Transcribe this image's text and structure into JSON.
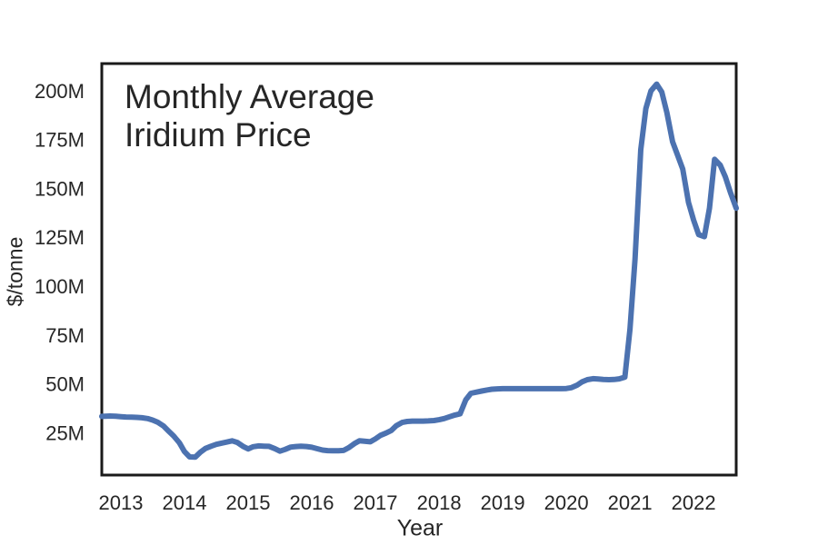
{
  "colors": {
    "line": "#4c72b0",
    "frame": "#1a1a1a",
    "text": "#262626",
    "background": "#ffffff"
  },
  "chart_data": {
    "type": "line",
    "title": "Monthly Average Iridium Price",
    "title_line1": "Monthly Average",
    "title_line2": "Iridium Price",
    "xlabel": "Year",
    "ylabel": "$/tonne",
    "grid": false,
    "legend": "none",
    "xlim": [
      2012.7,
      2022.67
    ],
    "ylim": [
      3.5,
      214
    ],
    "line_color": "#4c72b0",
    "line_width": 6,
    "yticks": [
      {
        "value": 25,
        "label": "25M"
      },
      {
        "value": 50,
        "label": "50M"
      },
      {
        "value": 75,
        "label": "75M"
      },
      {
        "value": 100,
        "label": "100M"
      },
      {
        "value": 125,
        "label": "125M"
      },
      {
        "value": 150,
        "label": "150M"
      },
      {
        "value": 175,
        "label": "175M"
      },
      {
        "value": 200,
        "label": "200M"
      }
    ],
    "xticks": [
      {
        "value": 2013,
        "label": "2013"
      },
      {
        "value": 2014,
        "label": "2014"
      },
      {
        "value": 2015,
        "label": "2015"
      },
      {
        "value": 2016,
        "label": "2016"
      },
      {
        "value": 2017,
        "label": "2017"
      },
      {
        "value": 2018,
        "label": "2018"
      },
      {
        "value": 2019,
        "label": "2019"
      },
      {
        "value": 2020,
        "label": "2020"
      },
      {
        "value": 2021,
        "label": "2021"
      },
      {
        "value": 2022,
        "label": "2022"
      }
    ],
    "x": [
      2012.7,
      2012.75,
      2012.83,
      2012.92,
      2013.0,
      2013.08,
      2013.17,
      2013.25,
      2013.33,
      2013.42,
      2013.5,
      2013.58,
      2013.67,
      2013.75,
      2013.83,
      2013.92,
      2014.0,
      2014.08,
      2014.17,
      2014.25,
      2014.33,
      2014.42,
      2014.5,
      2014.58,
      2014.67,
      2014.75,
      2014.83,
      2014.92,
      2015.0,
      2015.08,
      2015.17,
      2015.25,
      2015.33,
      2015.42,
      2015.5,
      2015.58,
      2015.67,
      2015.75,
      2015.83,
      2015.92,
      2016.0,
      2016.08,
      2016.17,
      2016.25,
      2016.33,
      2016.42,
      2016.5,
      2016.58,
      2016.67,
      2016.75,
      2016.83,
      2016.92,
      2017.0,
      2017.08,
      2017.17,
      2017.25,
      2017.33,
      2017.42,
      2017.5,
      2017.58,
      2017.67,
      2017.75,
      2017.83,
      2017.92,
      2018.0,
      2018.08,
      2018.17,
      2018.25,
      2018.33,
      2018.42,
      2018.5,
      2018.58,
      2018.67,
      2018.75,
      2018.83,
      2018.92,
      2019.0,
      2019.08,
      2019.17,
      2019.25,
      2019.33,
      2019.42,
      2019.5,
      2019.58,
      2019.67,
      2019.75,
      2019.83,
      2019.92,
      2020.0,
      2020.08,
      2020.17,
      2020.25,
      2020.33,
      2020.42,
      2020.5,
      2020.58,
      2020.67,
      2020.75,
      2020.83,
      2020.92,
      2021.0,
      2021.08,
      2021.17,
      2021.25,
      2021.33,
      2021.42,
      2021.5,
      2021.58,
      2021.67,
      2021.75,
      2021.83,
      2021.92,
      2022.0,
      2022.08,
      2022.17,
      2022.25,
      2022.33,
      2022.42,
      2022.5,
      2022.58,
      2022.67
    ],
    "series": [
      {
        "name": "Monthly Average Iridium Price",
        "unit": "$M/tonne",
        "values": [
          33.5,
          33.6,
          33.7,
          33.6,
          33.4,
          33.2,
          33.1,
          33.0,
          32.8,
          32.4,
          31.6,
          30.5,
          28.6,
          26.0,
          23.5,
          20.0,
          15.5,
          12.8,
          12.7,
          15.2,
          17.1,
          18.3,
          19.2,
          19.8,
          20.4,
          21.0,
          20.2,
          18.2,
          16.9,
          18.0,
          18.4,
          18.3,
          18.2,
          17.0,
          15.7,
          16.6,
          17.8,
          18.1,
          18.3,
          18.1,
          17.7,
          17.0,
          16.3,
          16.0,
          15.9,
          15.9,
          16.1,
          17.5,
          19.6,
          21.0,
          20.8,
          20.5,
          22.0,
          23.8,
          25.0,
          26.3,
          28.8,
          30.4,
          30.9,
          31.1,
          31.1,
          31.1,
          31.2,
          31.4,
          31.8,
          32.4,
          33.4,
          34.2,
          34.8,
          42.0,
          45.3,
          45.9,
          46.5,
          47.0,
          47.4,
          47.6,
          47.7,
          47.7,
          47.7,
          47.7,
          47.7,
          47.7,
          47.7,
          47.7,
          47.7,
          47.7,
          47.7,
          47.7,
          47.8,
          48.2,
          49.5,
          51.2,
          52.3,
          52.8,
          52.6,
          52.4,
          52.3,
          52.4,
          52.7,
          53.6,
          78.0,
          114.0,
          170.0,
          191.0,
          200.0,
          203.5,
          199.5,
          189.0,
          174.0,
          167.0,
          160.0,
          143.0,
          134.0,
          126.5,
          125.5,
          140.0,
          165.0,
          162.0,
          156.0,
          148.0,
          140.0
        ]
      }
    ]
  }
}
